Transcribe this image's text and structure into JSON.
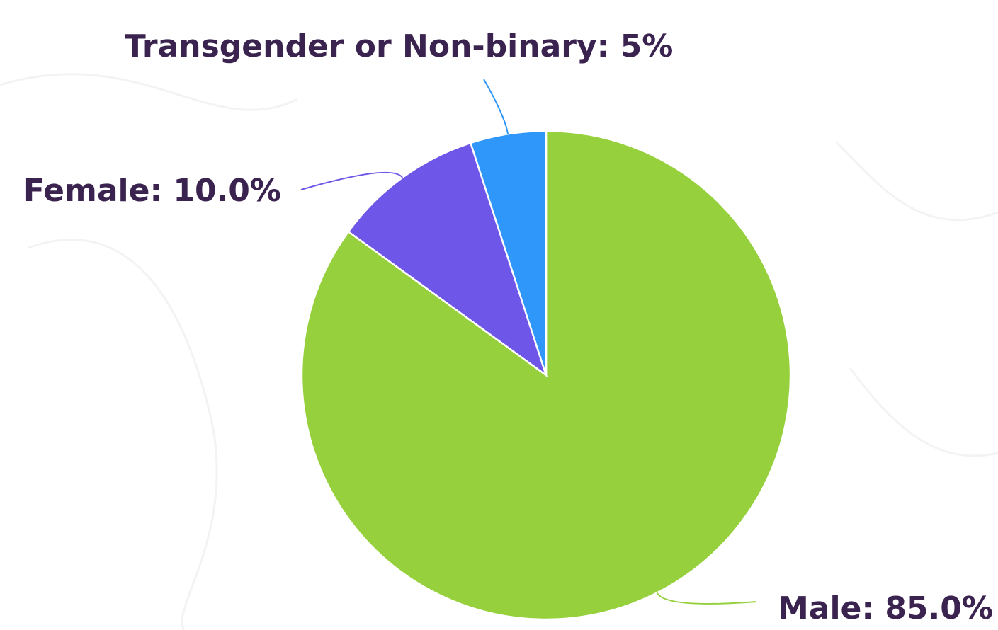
{
  "chart_data": {
    "type": "pie",
    "values": [
      85.0,
      10.0,
      5
    ],
    "value_labels": [
      "Male: 85.0%",
      "Female: 10.0%",
      "Transgender or Non-binary: 5%"
    ],
    "colors": [
      "#96d13d",
      "#6e57e8",
      "#2f96fa"
    ],
    "start_angle": 0,
    "direction": "clockwise"
  }
}
